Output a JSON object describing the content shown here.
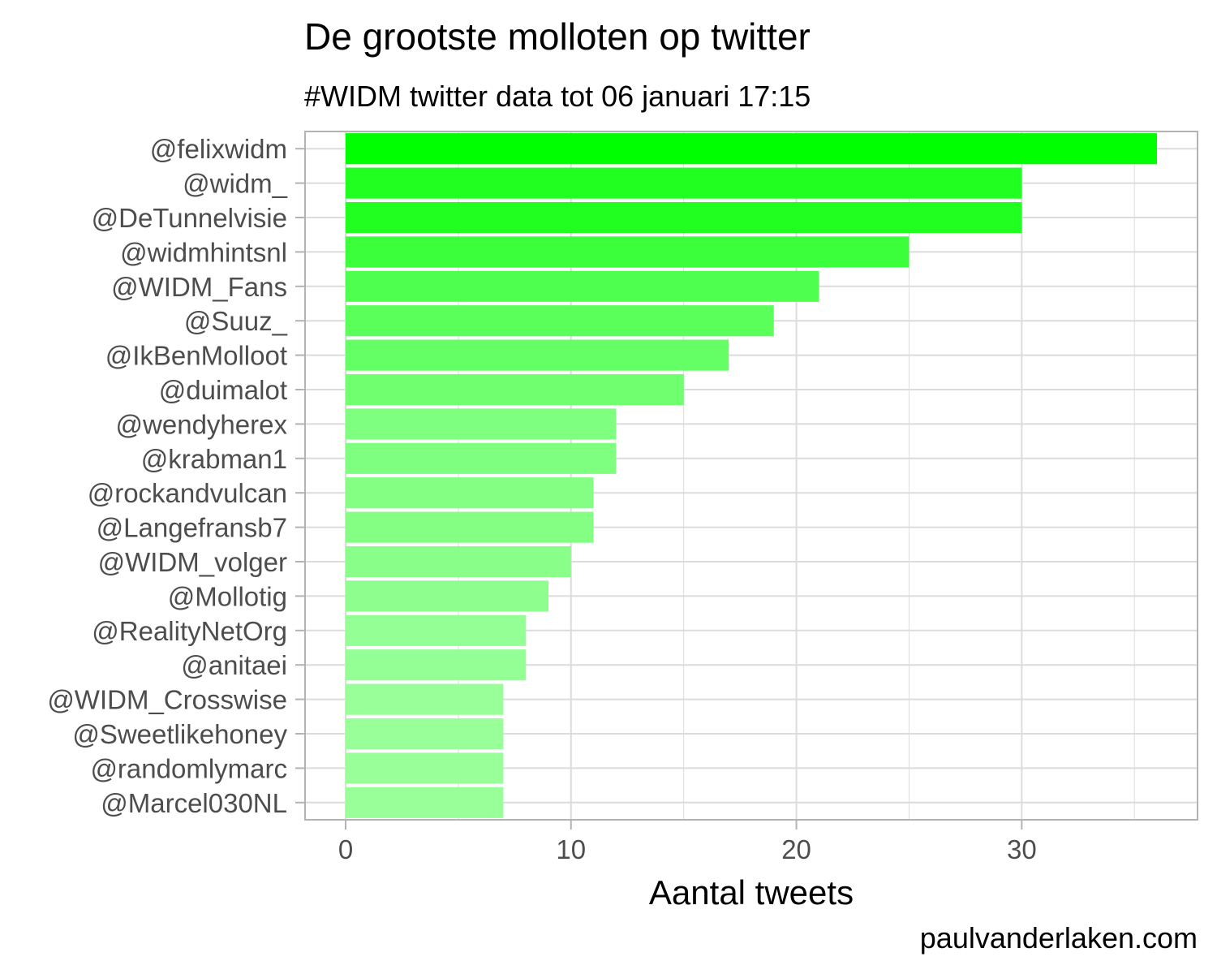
{
  "chart_data": {
    "type": "bar",
    "orientation": "horizontal",
    "title": "De grootste molloten op twitter",
    "subtitle": "#WIDM twitter data tot 06 januari 17:15",
    "caption": "paulvanderlaken.com",
    "xlabel": "Aantal tweets",
    "ylabel": "",
    "xlim": [
      -1.8,
      37.8
    ],
    "x_ticks": [
      0,
      10,
      20,
      30
    ],
    "grid": true,
    "legend": "none",
    "categories": [
      "@felixwidm",
      "@widm_",
      "@DeTunnelvisie",
      "@widmhintsnl",
      "@WIDM_Fans",
      "@Suuz_",
      "@IkBenMolloot",
      "@duimalot",
      "@wendyherex",
      "@krabman1",
      "@rockandvulcan",
      "@Langefransb7",
      "@WIDM_volger",
      "@Mollotig",
      "@RealityNetOrg",
      "@anitaei",
      "@WIDM_Crosswise",
      "@Sweetlikehoney",
      "@randomlymarc",
      "@Marcel030NL"
    ],
    "values": [
      36,
      30,
      30,
      25,
      21,
      19,
      17,
      15,
      12,
      12,
      11,
      11,
      10,
      9,
      8,
      8,
      7,
      7,
      7,
      7
    ],
    "colors": {
      "bar_high": "#00ff00",
      "bar_low": "#99ff99",
      "grid": "#dcdcdc",
      "panel_border": "#b3b3b3",
      "tick_text": "#4d4d4d"
    }
  }
}
